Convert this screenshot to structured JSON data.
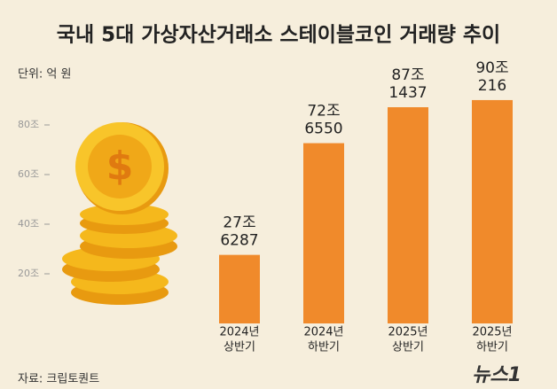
{
  "chart_data": {
    "type": "bar",
    "title": "국내 5대 가상자산거래소 스테이블코인 거래량 추이",
    "unit": "단위: 억 원",
    "source": "자료: 크립토퀀트",
    "logo": "뉴스1",
    "categories": [
      [
        "2024년",
        "상반기"
      ],
      [
        "2024년",
        "하반기"
      ],
      [
        "2025년",
        "상반기"
      ],
      [
        "2025년",
        "하반기"
      ]
    ],
    "values": [
      27.6287,
      72.655,
      87.1437,
      90.0216
    ],
    "value_labels": [
      [
        "27조",
        "6287"
      ],
      [
        "72조",
        "6550"
      ],
      [
        "87조",
        "1437"
      ],
      [
        "90조",
        "216"
      ]
    ],
    "color": "#f08a2b",
    "ylim": [
      0,
      100
    ],
    "yticks": [
      {
        "value": 20,
        "label": "20조"
      },
      {
        "value": 40,
        "label": "40조"
      },
      {
        "value": 60,
        "label": "60조"
      },
      {
        "value": 80,
        "label": "80조"
      }
    ]
  }
}
